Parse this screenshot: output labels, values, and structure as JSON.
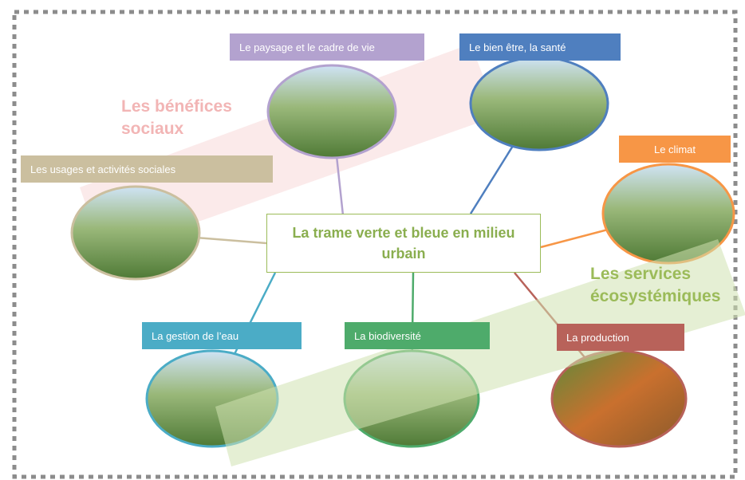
{
  "center": {
    "label": "La trame verte et bleue en milieu urbain"
  },
  "groups": [
    {
      "label": "Les bénéfices sociaux"
    },
    {
      "label": "Les services écosystémiques"
    }
  ],
  "nodes": [
    {
      "label": "Le paysage et le cadre de vie"
    },
    {
      "label": "Le bien être, la santé"
    },
    {
      "label": "Le climat"
    },
    {
      "label": "Les usages et activités sociales"
    },
    {
      "label": "La gestion de l’eau"
    },
    {
      "label": "La biodiversité"
    },
    {
      "label": "La production"
    }
  ]
}
